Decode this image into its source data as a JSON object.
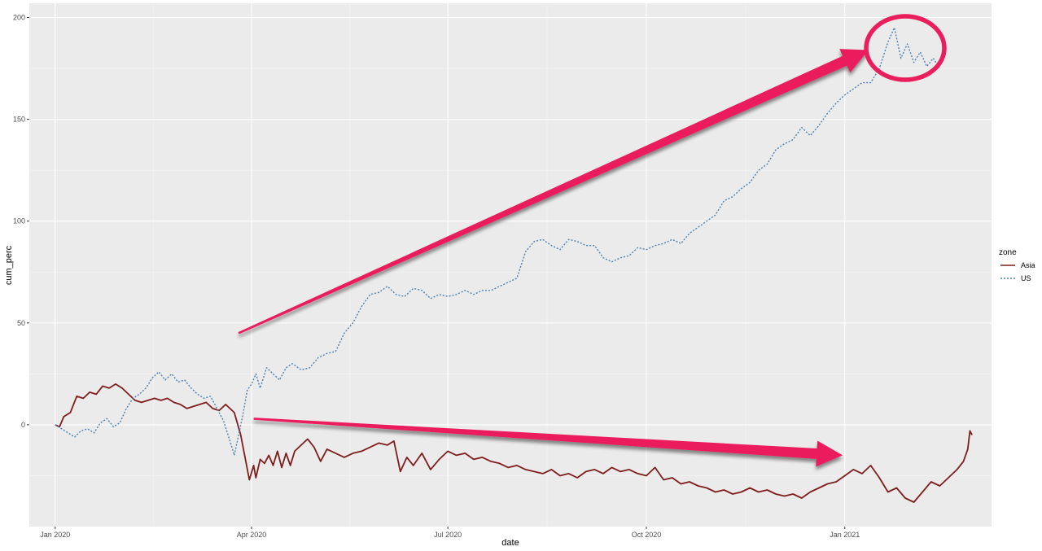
{
  "chart_data": {
    "type": "line",
    "title": "",
    "xlabel": "date",
    "ylabel": "cum_perc",
    "x_ticks": [
      "Jan 2020",
      "Apr 2020",
      "Jul 2020",
      "Oct 2020",
      "Jan 2021"
    ],
    "y_ticks": [
      "0",
      "50",
      "100",
      "150",
      "200"
    ],
    "xlim": [
      "2019-12-20",
      "2021-03-10"
    ],
    "ylim": [
      -50,
      207
    ],
    "grid": true,
    "legend": {
      "title": "zone",
      "position": "right"
    },
    "series": [
      {
        "name": "Asia",
        "color": "#7f1d1d",
        "linestyle": "solid",
        "points": [
          [
            "2020-01-01",
            0
          ],
          [
            "2020-01-03",
            -1
          ],
          [
            "2020-01-05",
            4
          ],
          [
            "2020-01-08",
            6
          ],
          [
            "2020-01-11",
            14
          ],
          [
            "2020-01-14",
            13
          ],
          [
            "2020-01-17",
            16
          ],
          [
            "2020-01-20",
            15
          ],
          [
            "2020-01-23",
            19
          ],
          [
            "2020-01-26",
            18
          ],
          [
            "2020-01-29",
            20
          ],
          [
            "2020-02-01",
            18
          ],
          [
            "2020-02-04",
            15
          ],
          [
            "2020-02-07",
            12
          ],
          [
            "2020-02-10",
            11
          ],
          [
            "2020-02-13",
            12
          ],
          [
            "2020-02-16",
            13
          ],
          [
            "2020-02-19",
            12
          ],
          [
            "2020-02-22",
            13
          ],
          [
            "2020-02-25",
            11
          ],
          [
            "2020-02-28",
            10
          ],
          [
            "2020-03-02",
            8
          ],
          [
            "2020-03-05",
            9
          ],
          [
            "2020-03-08",
            10
          ],
          [
            "2020-03-11",
            11
          ],
          [
            "2020-03-14",
            8
          ],
          [
            "2020-03-17",
            7
          ],
          [
            "2020-03-20",
            10
          ],
          [
            "2020-03-22",
            8
          ],
          [
            "2020-03-24",
            6
          ],
          [
            "2020-03-27",
            -5
          ],
          [
            "2020-03-29",
            -16
          ],
          [
            "2020-03-31",
            -27
          ],
          [
            "2020-04-02",
            -20
          ],
          [
            "2020-04-03",
            -26
          ],
          [
            "2020-04-05",
            -17
          ],
          [
            "2020-04-07",
            -19
          ],
          [
            "2020-04-09",
            -15
          ],
          [
            "2020-04-11",
            -20
          ],
          [
            "2020-04-13",
            -13
          ],
          [
            "2020-04-15",
            -21
          ],
          [
            "2020-04-17",
            -14
          ],
          [
            "2020-04-19",
            -20
          ],
          [
            "2020-04-21",
            -13
          ],
          [
            "2020-04-24",
            -10
          ],
          [
            "2020-04-27",
            -7
          ],
          [
            "2020-04-30",
            -11
          ],
          [
            "2020-05-03",
            -18
          ],
          [
            "2020-05-06",
            -12
          ],
          [
            "2020-05-10",
            -14
          ],
          [
            "2020-05-14",
            -16
          ],
          [
            "2020-05-18",
            -14
          ],
          [
            "2020-05-22",
            -13
          ],
          [
            "2020-05-26",
            -11
          ],
          [
            "2020-05-30",
            -9
          ],
          [
            "2020-06-03",
            -10
          ],
          [
            "2020-06-06",
            -8
          ],
          [
            "2020-06-09",
            -23
          ],
          [
            "2020-06-12",
            -16
          ],
          [
            "2020-06-15",
            -20
          ],
          [
            "2020-06-19",
            -14
          ],
          [
            "2020-06-23",
            -22
          ],
          [
            "2020-06-27",
            -17
          ],
          [
            "2020-07-01",
            -13
          ],
          [
            "2020-07-05",
            -15
          ],
          [
            "2020-07-09",
            -14
          ],
          [
            "2020-07-13",
            -17
          ],
          [
            "2020-07-17",
            -16
          ],
          [
            "2020-07-21",
            -18
          ],
          [
            "2020-07-25",
            -19
          ],
          [
            "2020-07-29",
            -21
          ],
          [
            "2020-08-02",
            -20
          ],
          [
            "2020-08-06",
            -22
          ],
          [
            "2020-08-10",
            -23
          ],
          [
            "2020-08-14",
            -24
          ],
          [
            "2020-08-18",
            -22
          ],
          [
            "2020-08-22",
            -25
          ],
          [
            "2020-08-26",
            -24
          ],
          [
            "2020-08-30",
            -26
          ],
          [
            "2020-09-03",
            -23
          ],
          [
            "2020-09-07",
            -22
          ],
          [
            "2020-09-11",
            -24
          ],
          [
            "2020-09-15",
            -21
          ],
          [
            "2020-09-19",
            -23
          ],
          [
            "2020-09-23",
            -22
          ],
          [
            "2020-09-27",
            -24
          ],
          [
            "2020-10-01",
            -25
          ],
          [
            "2020-10-05",
            -21
          ],
          [
            "2020-10-09",
            -27
          ],
          [
            "2020-10-13",
            -26
          ],
          [
            "2020-10-17",
            -29
          ],
          [
            "2020-10-21",
            -28
          ],
          [
            "2020-10-25",
            -30
          ],
          [
            "2020-10-29",
            -31
          ],
          [
            "2020-11-02",
            -33
          ],
          [
            "2020-11-06",
            -32
          ],
          [
            "2020-11-10",
            -34
          ],
          [
            "2020-11-14",
            -33
          ],
          [
            "2020-11-18",
            -31
          ],
          [
            "2020-11-22",
            -33
          ],
          [
            "2020-11-26",
            -32
          ],
          [
            "2020-11-30",
            -34
          ],
          [
            "2020-12-04",
            -35
          ],
          [
            "2020-12-08",
            -34
          ],
          [
            "2020-12-12",
            -36
          ],
          [
            "2020-12-16",
            -33
          ],
          [
            "2020-12-20",
            -31
          ],
          [
            "2020-12-24",
            -29
          ],
          [
            "2020-12-28",
            -28
          ],
          [
            "2021-01-01",
            -25
          ],
          [
            "2021-01-05",
            -22
          ],
          [
            "2021-01-09",
            -24
          ],
          [
            "2021-01-13",
            -20
          ],
          [
            "2021-01-17",
            -26
          ],
          [
            "2021-01-21",
            -33
          ],
          [
            "2021-01-25",
            -31
          ],
          [
            "2021-01-29",
            -36
          ],
          [
            "2021-02-02",
            -38
          ],
          [
            "2021-02-06",
            -33
          ],
          [
            "2021-02-10",
            -28
          ],
          [
            "2021-02-14",
            -30
          ],
          [
            "2021-02-18",
            -26
          ],
          [
            "2021-02-22",
            -22
          ],
          [
            "2021-02-25",
            -18
          ],
          [
            "2021-02-27",
            -12
          ],
          [
            "2021-02-28",
            -3
          ],
          [
            "2021-03-01",
            -5
          ]
        ]
      },
      {
        "name": "US",
        "color": "#4a7fb5",
        "linestyle": "dotted",
        "points": [
          [
            "2020-01-01",
            0
          ],
          [
            "2020-01-04",
            -2
          ],
          [
            "2020-01-07",
            -4
          ],
          [
            "2020-01-10",
            -6
          ],
          [
            "2020-01-13",
            -3
          ],
          [
            "2020-01-16",
            -2
          ],
          [
            "2020-01-19",
            -4
          ],
          [
            "2020-01-22",
            1
          ],
          [
            "2020-01-25",
            3
          ],
          [
            "2020-01-28",
            -1
          ],
          [
            "2020-01-31",
            1
          ],
          [
            "2020-02-03",
            8
          ],
          [
            "2020-02-06",
            13
          ],
          [
            "2020-02-09",
            15
          ],
          [
            "2020-02-12",
            18
          ],
          [
            "2020-02-15",
            23
          ],
          [
            "2020-02-18",
            26
          ],
          [
            "2020-02-21",
            22
          ],
          [
            "2020-02-24",
            25
          ],
          [
            "2020-02-27",
            21
          ],
          [
            "2020-03-01",
            22
          ],
          [
            "2020-03-04",
            18
          ],
          [
            "2020-03-07",
            15
          ],
          [
            "2020-03-10",
            13
          ],
          [
            "2020-03-13",
            14
          ],
          [
            "2020-03-16",
            8
          ],
          [
            "2020-03-19",
            2
          ],
          [
            "2020-03-22",
            -8
          ],
          [
            "2020-03-24",
            -15
          ],
          [
            "2020-03-26",
            -5
          ],
          [
            "2020-03-28",
            5
          ],
          [
            "2020-03-30",
            17
          ],
          [
            "2020-04-01",
            20
          ],
          [
            "2020-04-03",
            25
          ],
          [
            "2020-04-05",
            18
          ],
          [
            "2020-04-08",
            28
          ],
          [
            "2020-04-11",
            25
          ],
          [
            "2020-04-14",
            22
          ],
          [
            "2020-04-17",
            28
          ],
          [
            "2020-04-20",
            30
          ],
          [
            "2020-04-24",
            27
          ],
          [
            "2020-04-28",
            28
          ],
          [
            "2020-05-02",
            33
          ],
          [
            "2020-05-06",
            35
          ],
          [
            "2020-05-10",
            36
          ],
          [
            "2020-05-14",
            45
          ],
          [
            "2020-05-18",
            50
          ],
          [
            "2020-05-22",
            58
          ],
          [
            "2020-05-26",
            64
          ],
          [
            "2020-05-30",
            65
          ],
          [
            "2020-06-03",
            68
          ],
          [
            "2020-06-07",
            64
          ],
          [
            "2020-06-11",
            63
          ],
          [
            "2020-06-15",
            67
          ],
          [
            "2020-06-19",
            66
          ],
          [
            "2020-06-23",
            62
          ],
          [
            "2020-06-27",
            64
          ],
          [
            "2020-07-01",
            63
          ],
          [
            "2020-07-05",
            64
          ],
          [
            "2020-07-09",
            66
          ],
          [
            "2020-07-13",
            64
          ],
          [
            "2020-07-17",
            66
          ],
          [
            "2020-07-21",
            66
          ],
          [
            "2020-07-25",
            68
          ],
          [
            "2020-07-29",
            70
          ],
          [
            "2020-08-02",
            72
          ],
          [
            "2020-08-06",
            85
          ],
          [
            "2020-08-10",
            90
          ],
          [
            "2020-08-14",
            91
          ],
          [
            "2020-08-18",
            88
          ],
          [
            "2020-08-22",
            86
          ],
          [
            "2020-08-26",
            91
          ],
          [
            "2020-08-30",
            90
          ],
          [
            "2020-09-03",
            88
          ],
          [
            "2020-09-07",
            88
          ],
          [
            "2020-09-11",
            82
          ],
          [
            "2020-09-15",
            80
          ],
          [
            "2020-09-19",
            82
          ],
          [
            "2020-09-23",
            83
          ],
          [
            "2020-09-27",
            87
          ],
          [
            "2020-10-01",
            86
          ],
          [
            "2020-10-05",
            88
          ],
          [
            "2020-10-09",
            89
          ],
          [
            "2020-10-13",
            91
          ],
          [
            "2020-10-17",
            89
          ],
          [
            "2020-10-21",
            94
          ],
          [
            "2020-10-25",
            97
          ],
          [
            "2020-10-29",
            100
          ],
          [
            "2020-11-02",
            103
          ],
          [
            "2020-11-06",
            110
          ],
          [
            "2020-11-10",
            112
          ],
          [
            "2020-11-14",
            116
          ],
          [
            "2020-11-18",
            119
          ],
          [
            "2020-11-22",
            125
          ],
          [
            "2020-11-26",
            128
          ],
          [
            "2020-11-30",
            135
          ],
          [
            "2020-12-04",
            138
          ],
          [
            "2020-12-08",
            140
          ],
          [
            "2020-12-12",
            146
          ],
          [
            "2020-12-16",
            142
          ],
          [
            "2020-12-20",
            147
          ],
          [
            "2020-12-24",
            153
          ],
          [
            "2020-12-28",
            158
          ],
          [
            "2021-01-01",
            162
          ],
          [
            "2021-01-05",
            165
          ],
          [
            "2021-01-09",
            168
          ],
          [
            "2021-01-13",
            168
          ],
          [
            "2021-01-17",
            175
          ],
          [
            "2021-01-21",
            188
          ],
          [
            "2021-01-24",
            195
          ],
          [
            "2021-01-27",
            180
          ],
          [
            "2021-01-30",
            187
          ],
          [
            "2021-02-02",
            178
          ],
          [
            "2021-02-05",
            183
          ],
          [
            "2021-02-08",
            176
          ],
          [
            "2021-02-11",
            180
          ],
          [
            "2021-02-14",
            175
          ]
        ]
      }
    ],
    "annotations": [
      {
        "type": "arrow",
        "color": "#ea1d5d",
        "from": [
          "2020-03-26",
          45
        ],
        "to": [
          "2021-01-12",
          184
        ]
      },
      {
        "type": "arrow",
        "color": "#ea1d5d",
        "from": [
          "2020-04-02",
          3
        ],
        "to": [
          "2020-12-31",
          -15
        ]
      },
      {
        "type": "ellipse",
        "color": "#ea1d5d",
        "center": [
          "2021-01-29",
          185
        ]
      }
    ]
  }
}
